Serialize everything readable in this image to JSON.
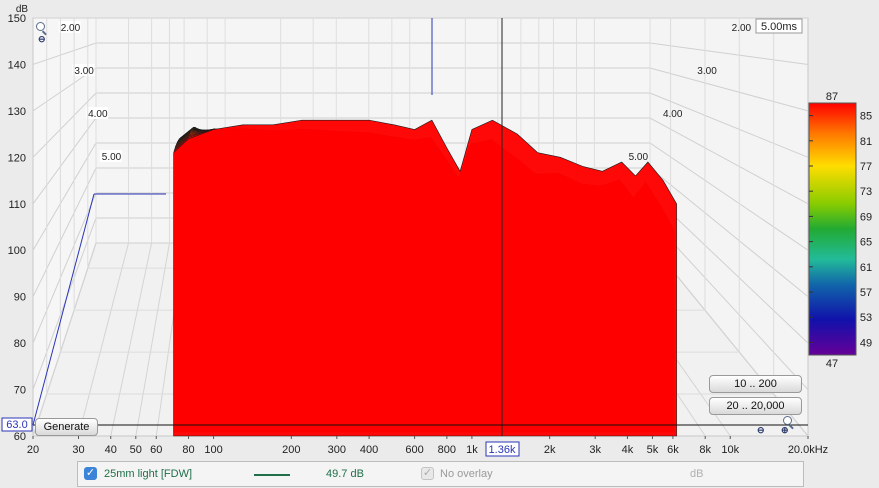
{
  "chart_data": {
    "type": "waterfall",
    "title": "",
    "ylabel": "dB",
    "ylim": [
      60,
      150
    ],
    "y_ticks": [
      "60",
      "70",
      "80",
      "90",
      "100",
      "110",
      "120",
      "130",
      "140",
      "150"
    ],
    "xlabel_unit": "kHz",
    "x_range_hz": [
      20,
      20000
    ],
    "x_ticks": [
      "20",
      "30",
      "40",
      "50",
      "60",
      "80",
      "100",
      "200",
      "300",
      "400",
      "600",
      "800",
      "1k",
      "2k",
      "3k",
      "4k",
      "5k",
      "6k",
      "8k",
      "10k",
      "20.0kHz"
    ],
    "x_ticks_hz": [
      20,
      30,
      40,
      50,
      60,
      80,
      100,
      200,
      300,
      400,
      600,
      800,
      1000,
      2000,
      3000,
      4000,
      5000,
      6000,
      8000,
      10000,
      20000
    ],
    "time_ticks": [
      "2.00",
      "3.00",
      "4.00",
      "5.00"
    ],
    "time_end_label": "5.00ms",
    "cursor_freq_label": "1.36k",
    "cursor_y_label": "63.0",
    "colorbar": {
      "min": 47,
      "max": 87,
      "top_label": "87",
      "bottom_label": "47",
      "ticks": [
        "85",
        "81",
        "77",
        "73",
        "69",
        "65",
        "61",
        "57",
        "53",
        "49"
      ]
    },
    "spectrum_profile": {
      "freq_hz": [
        70,
        80,
        100,
        130,
        170,
        220,
        300,
        400,
        500,
        600,
        700,
        800,
        900,
        1000,
        1200,
        1500,
        1800,
        2200,
        2700,
        3200,
        3800,
        4300,
        4800,
        5500,
        6200
      ],
      "front_db": [
        121,
        124,
        126,
        127,
        127,
        128,
        128,
        128,
        127,
        126,
        128,
        122,
        117,
        126,
        128,
        125,
        121,
        120,
        118,
        117,
        119,
        116,
        119,
        115,
        110
      ],
      "decay_time_ms": [
        5.0,
        5.0,
        4.2,
        2.6,
        2.2,
        1.8,
        1.6,
        1.5,
        1.5,
        1.6,
        1.2,
        1.5,
        1.7,
        1.3,
        1.1,
        0.9,
        0.9,
        1.1,
        1.0,
        1.1,
        1.0,
        0.8,
        0.9,
        0.7,
        0.6
      ]
    }
  },
  "buttons": {
    "generate": "Generate",
    "range_10_200": "10 .. 200",
    "range_20_20000": "20 .. 20,000"
  },
  "legend": {
    "measurement_name": "25mm light [FDW]",
    "measurement_value": "49.7 dB",
    "overlay_label": "No overlay",
    "overlay_unit": "dB",
    "colors": {
      "line": "#1f6f4a",
      "value_text": "#1f6f4a",
      "checkbox": "#3b84d8"
    }
  }
}
